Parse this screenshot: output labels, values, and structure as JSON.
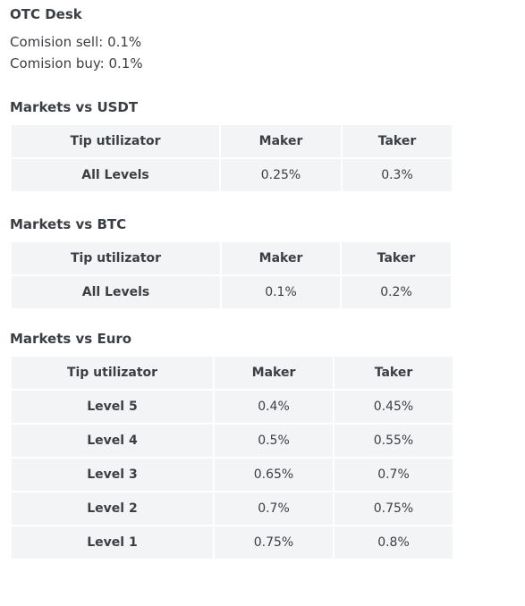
{
  "otc": {
    "title": "OTC Desk",
    "commission_sell": "Comision sell: 0.1%",
    "commission_buy": "Comision buy: 0.1%"
  },
  "sections": [
    {
      "title": "Markets vs USDT",
      "headers": [
        "Tip utilizator",
        "Maker",
        "Taker"
      ],
      "rows": [
        [
          "All Levels",
          "0.25%",
          "0.3%"
        ]
      ]
    },
    {
      "title": "Markets vs BTC",
      "headers": [
        "Tip utilizator",
        "Maker",
        "Taker"
      ],
      "rows": [
        [
          "All Levels",
          "0.1%",
          "0.2%"
        ]
      ]
    },
    {
      "title": "Markets vs Euro",
      "headers": [
        "Tip utilizator",
        "Maker",
        "Taker"
      ],
      "rows": [
        [
          "Level 5",
          "0.4%",
          "0.45%"
        ],
        [
          "Level 4",
          "0.5%",
          "0.55%"
        ],
        [
          "Level 3",
          "0.65%",
          "0.7%"
        ],
        [
          "Level 2",
          "0.7%",
          "0.75%"
        ],
        [
          "Level 1",
          "0.75%",
          "0.8%"
        ]
      ]
    }
  ]
}
